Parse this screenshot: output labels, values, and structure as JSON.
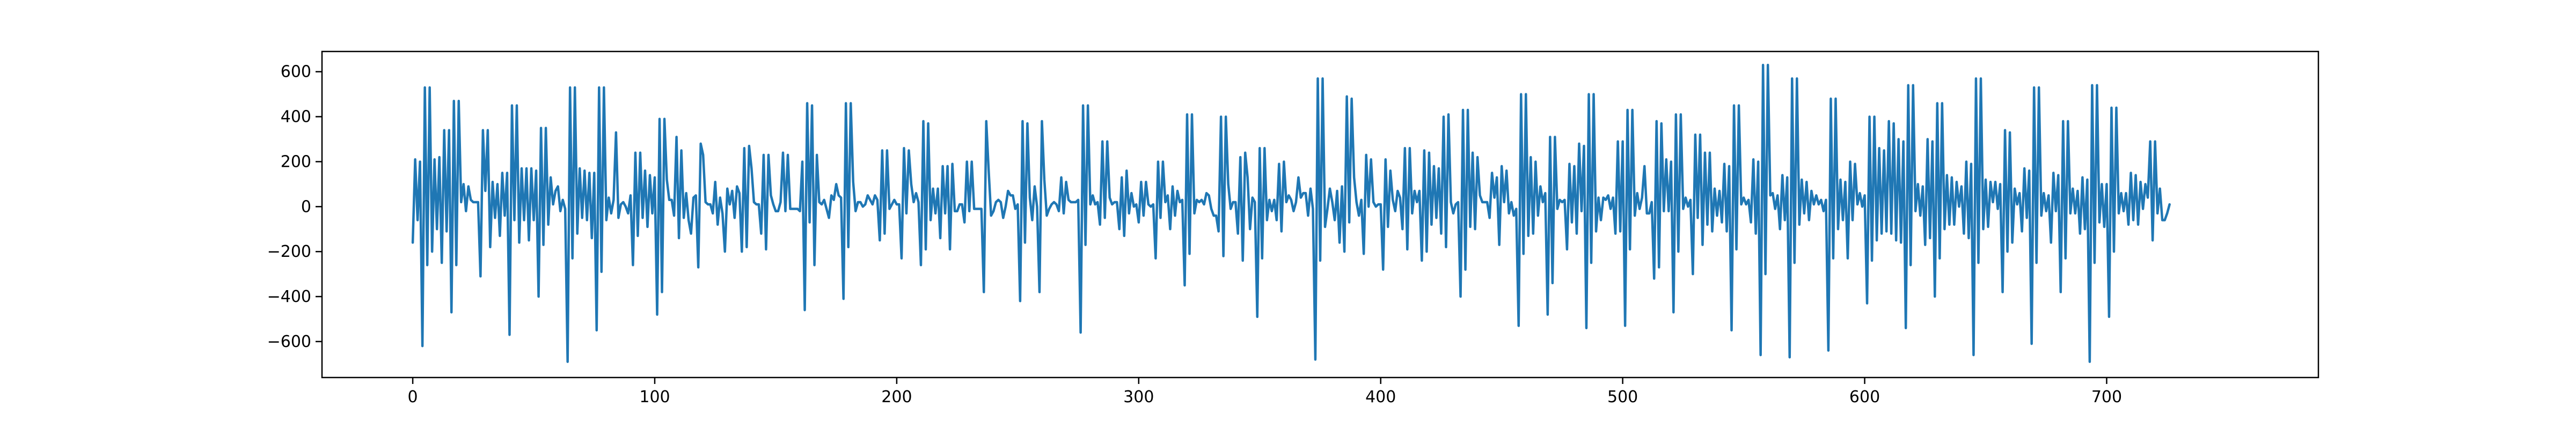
{
  "chart_data": {
    "type": "line",
    "title": "",
    "xlabel": "",
    "ylabel": "",
    "xlim": [
      -37.5,
      787.5
    ],
    "ylim": [
      -760,
      690
    ],
    "x_ticks": [
      0,
      100,
      200,
      300,
      400,
      500,
      600,
      700
    ],
    "y_ticks": [
      -600,
      -400,
      -200,
      0,
      200,
      400,
      600
    ],
    "x_tick_labels": [
      "0",
      "100",
      "200",
      "300",
      "400",
      "500",
      "600",
      "700"
    ],
    "y_tick_labels": [
      "−600",
      "−400",
      "−200",
      "0",
      "200",
      "400",
      "600"
    ],
    "grid": false,
    "legend": "none",
    "series_color": "#1f77b4",
    "series": [
      {
        "name": "",
        "x_start": 0,
        "x_step": 1,
        "values": [
          -160,
          210,
          -60,
          200,
          -620,
          530,
          -260,
          530,
          -200,
          210,
          -100,
          220,
          -250,
          340,
          -110,
          340,
          -470,
          470,
          -260,
          470,
          20,
          100,
          -20,
          90,
          30,
          20,
          20,
          20,
          -310,
          340,
          70,
          340,
          -180,
          110,
          -50,
          100,
          -130,
          150,
          -40,
          150,
          -570,
          450,
          -60,
          450,
          -160,
          170,
          -60,
          170,
          -150,
          170,
          -60,
          160,
          -400,
          350,
          -170,
          350,
          -80,
          130,
          10,
          70,
          90,
          -20,
          30,
          -10,
          -690,
          530,
          -230,
          530,
          -120,
          170,
          -50,
          160,
          -60,
          150,
          -140,
          150,
          -550,
          530,
          -290,
          530,
          -60,
          40,
          -30,
          30,
          330,
          -50,
          10,
          20,
          0,
          -30,
          50,
          -260,
          240,
          -130,
          240,
          -50,
          160,
          -90,
          140,
          -30,
          130,
          -480,
          390,
          -380,
          390,
          120,
          30,
          30,
          -40,
          310,
          -140,
          250,
          -50,
          60,
          -60,
          -120,
          40,
          50,
          -270,
          280,
          230,
          20,
          10,
          10,
          -30,
          110,
          -80,
          40,
          -30,
          -200,
          80,
          10,
          70,
          -50,
          90,
          60,
          -200,
          260,
          -180,
          270,
          170,
          20,
          10,
          10,
          -120,
          230,
          -190,
          230,
          50,
          10,
          -20,
          -20,
          20,
          240,
          -20,
          230,
          -10,
          -10,
          -10,
          -10,
          -20,
          200,
          -460,
          460,
          -70,
          450,
          -260,
          230,
          20,
          10,
          30,
          -10,
          -50,
          50,
          30,
          100,
          50,
          40,
          -410,
          460,
          -180,
          460,
          110,
          -20,
          20,
          20,
          0,
          10,
          50,
          30,
          10,
          50,
          30,
          -150,
          250,
          -120,
          250,
          -10,
          10,
          30,
          10,
          10,
          -230,
          260,
          -30,
          250,
          100,
          20,
          60,
          20,
          -260,
          380,
          -190,
          370,
          -60,
          80,
          -30,
          80,
          -140,
          180,
          -30,
          180,
          -190,
          190,
          -20,
          -20,
          10,
          10,
          -70,
          200,
          -20,
          200,
          -10,
          -10,
          -10,
          -10,
          -380,
          380,
          160,
          -40,
          -20,
          20,
          30,
          20,
          -50,
          0,
          70,
          50,
          50,
          -10,
          10,
          -420,
          380,
          -160,
          370,
          40,
          -60,
          90,
          0,
          -380,
          380,
          120,
          -40,
          -10,
          10,
          20,
          10,
          -20,
          130,
          -30,
          110,
          30,
          20,
          20,
          20,
          30,
          -560,
          450,
          -170,
          450,
          10,
          50,
          10,
          20,
          -80,
          290,
          -50,
          290,
          40,
          10,
          20,
          20,
          -100,
          130,
          -130,
          160,
          -30,
          60,
          0,
          10,
          -70,
          110,
          -40,
          110,
          10,
          0,
          10,
          -230,
          200,
          -50,
          200,
          20,
          50,
          -100,
          90,
          -40,
          70,
          20,
          30,
          -350,
          410,
          -210,
          410,
          -30,
          30,
          20,
          30,
          10,
          60,
          50,
          -10,
          -40,
          -40,
          -110,
          400,
          -220,
          400,
          100,
          -10,
          20,
          20,
          -120,
          220,
          -240,
          240,
          130,
          -100,
          40,
          20,
          -490,
          260,
          -230,
          260,
          -60,
          30,
          -20,
          30,
          -60,
          190,
          -110,
          200,
          20,
          50,
          30,
          -20,
          20,
          130,
          40,
          60,
          60,
          -40,
          80,
          -10,
          -680,
          570,
          -240,
          570,
          -90,
          -10,
          80,
          20,
          -60,
          70,
          -160,
          90,
          -200,
          490,
          -70,
          480,
          130,
          20,
          -40,
          30,
          -210,
          230,
          0,
          210,
          20,
          0,
          10,
          10,
          -280,
          210,
          -90,
          160,
          30,
          -20,
          70,
          40,
          -100,
          260,
          -190,
          260,
          -30,
          70,
          20,
          70,
          -240,
          250,
          -200,
          240,
          -80,
          180,
          -50,
          170,
          -120,
          400,
          -180,
          410,
          20,
          -30,
          10,
          20,
          -400,
          430,
          -280,
          430,
          -90,
          240,
          -100,
          220,
          50,
          20,
          20,
          20,
          -50,
          150,
          40,
          130,
          -170,
          180,
          20,
          160,
          -30,
          20,
          -40,
          -10,
          -530,
          500,
          -210,
          500,
          -130,
          220,
          -120,
          200,
          -40,
          90,
          20,
          60,
          -480,
          310,
          -340,
          310,
          -10,
          30,
          20,
          30,
          -190,
          190,
          -70,
          180,
          -120,
          280,
          -20,
          270,
          -540,
          500,
          -250,
          500,
          -110,
          40,
          -60,
          40,
          30,
          50,
          -10,
          40,
          -120,
          290,
          -110,
          290,
          -530,
          430,
          -190,
          430,
          -40,
          60,
          -10,
          40,
          180,
          -30,
          -30,
          20,
          -320,
          380,
          -270,
          370,
          -20,
          210,
          -20,
          200,
          -470,
          410,
          -200,
          410,
          -10,
          40,
          0,
          30,
          -300,
          320,
          -50,
          320,
          -170,
          240,
          -80,
          240,
          -110,
          80,
          -40,
          70,
          -70,
          190,
          -110,
          180,
          -550,
          450,
          -190,
          450,
          10,
          40,
          10,
          30,
          -70,
          210,
          -120,
          200,
          -660,
          630,
          -300,
          630,
          50,
          60,
          -10,
          50,
          -100,
          140,
          -60,
          130,
          -670,
          570,
          -250,
          570,
          -80,
          120,
          -30,
          110,
          -60,
          70,
          10,
          50,
          10,
          30,
          -20,
          30,
          -640,
          480,
          -230,
          480,
          -100,
          120,
          -60,
          110,
          -230,
          200,
          -60,
          190,
          10,
          60,
          0,
          50,
          -430,
          400,
          -240,
          400,
          -150,
          260,
          -120,
          250,
          -110,
          380,
          -120,
          370,
          -150,
          300,
          -160,
          290,
          -540,
          540,
          -260,
          540,
          -20,
          100,
          -40,
          90,
          -170,
          300,
          -140,
          290,
          -400,
          460,
          -230,
          460,
          -100,
          140,
          -80,
          130,
          -80,
          110,
          0,
          90,
          -120,
          200,
          -140,
          190,
          -660,
          570,
          -250,
          570,
          -100,
          120,
          -90,
          110,
          20,
          110,
          -10,
          100,
          -380,
          340,
          -200,
          330,
          -160,
          80,
          10,
          60,
          -110,
          170,
          -50,
          160,
          -610,
          530,
          -250,
          530,
          -40,
          60,
          -20,
          50,
          -160,
          150,
          -20,
          140,
          -380,
          380,
          -230,
          380,
          -30,
          80,
          -30,
          70,
          -120,
          130,
          -100,
          120,
          -690,
          540,
          -250,
          540,
          -70,
          100,
          -90,
          100,
          -490,
          440,
          -200,
          440,
          -30,
          60,
          -20,
          60,
          -80,
          150,
          -60,
          140,
          -80,
          110,
          -10,
          100,
          40,
          290,
          -150,
          290,
          -30,
          80,
          -60,
          -60,
          -30,
          10
        ]
      }
    ]
  }
}
